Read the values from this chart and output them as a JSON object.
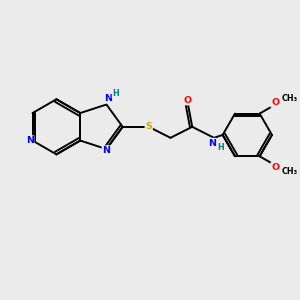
{
  "background_color": "#ebebeb",
  "bond_color": "#000000",
  "atom_colors": {
    "N": "#0000ff",
    "O": "#ff0000",
    "S": "#ccaa00",
    "C": "#000000",
    "H_label": "#008080"
  },
  "lw": 1.4,
  "fs": 6.8,
  "fs_small": 5.8,
  "xlim": [
    0,
    10
  ],
  "ylim": [
    0,
    10
  ]
}
